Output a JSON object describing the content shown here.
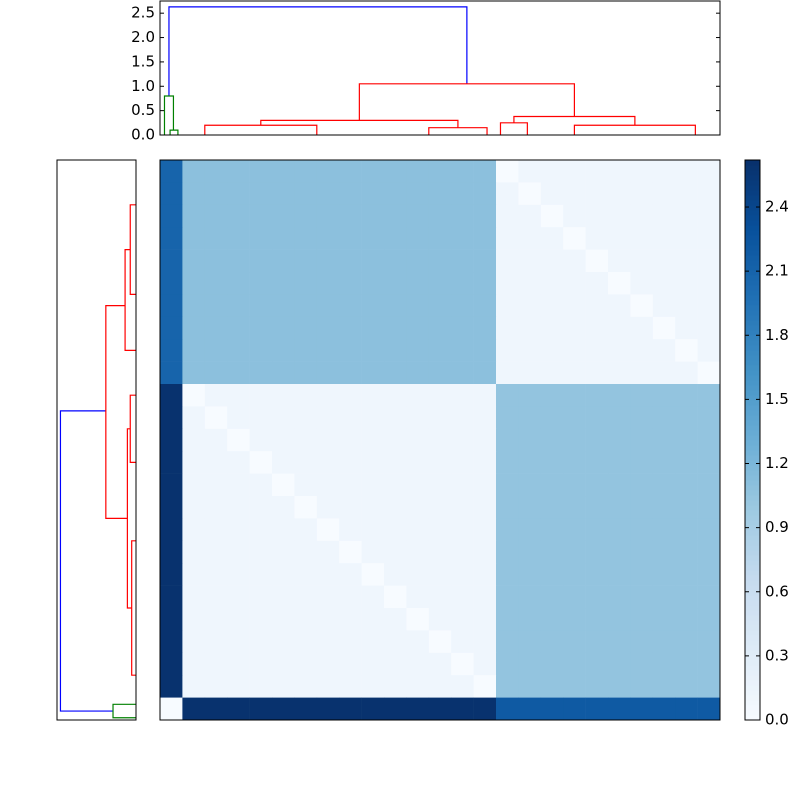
{
  "chart_data": [
    {
      "type": "dendrogram",
      "orientation": "top",
      "xlim": [
        0,
        25
      ],
      "ylim": [
        0,
        2.75
      ],
      "yticks": [
        {
          "value": 0,
          "label": "0.0"
        },
        0.5,
        {
          "value": 1,
          "label": "1.0"
        },
        1.5,
        {
          "value": 2,
          "label": "2.0"
        },
        2.5
      ],
      "links": [
        {
          "x": [
            0.4,
            13.7
          ],
          "height": 2.63,
          "base": [
            0.8,
            1.05
          ],
          "color": "#0000ff"
        },
        {
          "x": [
            0.2,
            0.6
          ],
          "height": 0.8,
          "base": [
            0,
            0.1
          ],
          "color": "#008000"
        },
        {
          "x": [
            0.45,
            0.8
          ],
          "height": 0.1,
          "base": [
            0,
            0
          ],
          "color": "#008000"
        },
        {
          "x": [
            8.9,
            18.5
          ],
          "height": 1.05,
          "base": [
            0.3,
            0.38
          ],
          "color": "#ff0000"
        },
        {
          "x": [
            4.5,
            13.3
          ],
          "height": 0.3,
          "base": [
            0.2,
            0.15
          ],
          "color": "#ff0000"
        },
        {
          "x": [
            2,
            7
          ],
          "height": 0.2,
          "base": [
            0,
            0
          ],
          "color": "#ff0000"
        },
        {
          "x": [
            12,
            14.6
          ],
          "height": 0.15,
          "base": [
            0,
            0
          ],
          "color": "#ff0000"
        },
        {
          "x": [
            15.8,
            21.2
          ],
          "height": 0.38,
          "base": [
            0.25,
            0.2
          ],
          "color": "#ff0000"
        },
        {
          "x": [
            15.2,
            16.4
          ],
          "height": 0.25,
          "base": [
            0,
            0
          ],
          "color": "#ff0000"
        },
        {
          "x": [
            18.5,
            23.9
          ],
          "height": 0.2,
          "base": [
            0,
            0
          ],
          "color": "#ff0000"
        }
      ]
    },
    {
      "type": "dendrogram",
      "orientation": "left",
      "ylim": [
        0,
        25
      ],
      "xlim": [
        0,
        2.75
      ],
      "links": [
        {
          "x": [
            11.2,
            24.6
          ],
          "height": 2.63,
          "base": [
            1.05,
            0.8
          ],
          "color": "#0000ff"
        },
        {
          "x": [
            24.3,
            24.9
          ],
          "height": 0.8,
          "base": [
            0,
            0
          ],
          "color": "#008000"
        },
        {
          "x": [
            6.5,
            16
          ],
          "height": 1.05,
          "base": [
            0.38,
            0.3
          ],
          "color": "#ff0000"
        },
        {
          "x": [
            4,
            8.5
          ],
          "height": 0.38,
          "base": [
            0.2,
            0
          ],
          "color": "#ff0000"
        },
        {
          "x": [
            2,
            6
          ],
          "height": 0.2,
          "base": [
            0,
            0
          ],
          "color": "#ff0000"
        },
        {
          "x": [
            12,
            20
          ],
          "height": 0.3,
          "base": [
            0.2,
            0.15
          ],
          "color": "#ff0000"
        },
        {
          "x": [
            10.5,
            13.5
          ],
          "height": 0.2,
          "base": [
            0,
            0
          ],
          "color": "#ff0000"
        },
        {
          "x": [
            17,
            23
          ],
          "height": 0.15,
          "base": [
            0,
            0
          ],
          "color": "#ff0000"
        }
      ]
    },
    {
      "type": "heatmap",
      "clim": [
        0,
        2.62
      ],
      "colormap": [
        "#f7fbff",
        "#deebf7",
        "#c6dbef",
        "#9ecae1",
        "#6baed6",
        "#4292c6",
        "#2171b5",
        "#08519c",
        "#08306b"
      ],
      "colorbar_ticks": [
        {
          "value": 0,
          "label": "0.0"
        },
        0.3,
        0.6,
        0.9,
        1.2,
        1.5,
        1.8,
        2.1,
        2.4
      ],
      "values": [
        [
          2.1,
          1.1,
          1.1,
          1.1,
          1.1,
          1.1,
          1.1,
          1.1,
          1.1,
          1.1,
          1.1,
          1.1,
          1.1,
          1.1,
          1.1,
          0,
          0.1,
          0.1,
          0.1,
          0.1,
          0.1,
          0.1,
          0.1,
          0.1,
          0.1
        ],
        [
          2.1,
          1.1,
          1.1,
          1.1,
          1.1,
          1.1,
          1.1,
          1.1,
          1.1,
          1.1,
          1.1,
          1.1,
          1.1,
          1.1,
          1.1,
          0.1,
          0,
          0.1,
          0.1,
          0.1,
          0.1,
          0.1,
          0.1,
          0.1,
          0.1
        ],
        [
          2.1,
          1.1,
          1.1,
          1.1,
          1.1,
          1.1,
          1.1,
          1.1,
          1.1,
          1.1,
          1.1,
          1.1,
          1.1,
          1.1,
          1.1,
          0.1,
          0.1,
          0,
          0.1,
          0.1,
          0.1,
          0.1,
          0.1,
          0.1,
          0.1
        ],
        [
          2.1,
          1.1,
          1.1,
          1.1,
          1.1,
          1.1,
          1.1,
          1.1,
          1.1,
          1.1,
          1.1,
          1.1,
          1.1,
          1.1,
          1.1,
          0.1,
          0.1,
          0.1,
          0,
          0.1,
          0.1,
          0.1,
          0.1,
          0.1,
          0.1
        ],
        [
          2.1,
          1.1,
          1.1,
          1.1,
          1.1,
          1.1,
          1.1,
          1.1,
          1.1,
          1.1,
          1.1,
          1.1,
          1.1,
          1.1,
          1.1,
          0.1,
          0.1,
          0.1,
          0.1,
          0,
          0.1,
          0.1,
          0.1,
          0.1,
          0.1
        ],
        [
          2.1,
          1.1,
          1.1,
          1.1,
          1.1,
          1.1,
          1.1,
          1.1,
          1.1,
          1.1,
          1.1,
          1.1,
          1.1,
          1.1,
          1.1,
          0.1,
          0.1,
          0.1,
          0.1,
          0.1,
          0,
          0.1,
          0.1,
          0.1,
          0.1
        ],
        [
          2.1,
          1.1,
          1.1,
          1.1,
          1.1,
          1.1,
          1.1,
          1.1,
          1.1,
          1.1,
          1.1,
          1.1,
          1.1,
          1.1,
          1.1,
          0.1,
          0.1,
          0.1,
          0.1,
          0.1,
          0.1,
          0,
          0.1,
          0.1,
          0.1
        ],
        [
          2.1,
          1.1,
          1.1,
          1.1,
          1.1,
          1.1,
          1.1,
          1.1,
          1.1,
          1.1,
          1.1,
          1.1,
          1.1,
          1.1,
          1.1,
          0.1,
          0.1,
          0.1,
          0.1,
          0.1,
          0.1,
          0.1,
          0,
          0.1,
          0.1
        ],
        [
          2.1,
          1.1,
          1.1,
          1.1,
          1.1,
          1.1,
          1.1,
          1.1,
          1.1,
          1.1,
          1.1,
          1.1,
          1.1,
          1.1,
          1.1,
          0.1,
          0.1,
          0.1,
          0.1,
          0.1,
          0.1,
          0.1,
          0.1,
          0,
          0.1
        ],
        [
          2.1,
          1.1,
          1.1,
          1.1,
          1.1,
          1.1,
          1.1,
          1.1,
          1.1,
          1.1,
          1.1,
          1.1,
          1.1,
          1.1,
          1.1,
          0.1,
          0.1,
          0.1,
          0.1,
          0.1,
          0.1,
          0.1,
          0.1,
          0.1,
          0
        ],
        [
          2.6,
          0,
          0.1,
          0.1,
          0.1,
          0.1,
          0.1,
          0.1,
          0.1,
          0.1,
          0.1,
          0.1,
          0.1,
          0.1,
          0.1,
          1.05,
          1.05,
          1.05,
          1.05,
          1.05,
          1.05,
          1.05,
          1.05,
          1.05,
          1.05
        ],
        [
          2.6,
          0.1,
          0,
          0.1,
          0.1,
          0.1,
          0.1,
          0.1,
          0.1,
          0.1,
          0.1,
          0.1,
          0.1,
          0.1,
          0.1,
          1.05,
          1.05,
          1.05,
          1.05,
          1.05,
          1.05,
          1.05,
          1.05,
          1.05,
          1.05
        ],
        [
          2.6,
          0.1,
          0.1,
          0,
          0.1,
          0.1,
          0.1,
          0.1,
          0.1,
          0.1,
          0.1,
          0.1,
          0.1,
          0.1,
          0.1,
          1.05,
          1.05,
          1.05,
          1.05,
          1.05,
          1.05,
          1.05,
          1.05,
          1.05,
          1.05
        ],
        [
          2.6,
          0.1,
          0.1,
          0.1,
          0,
          0.1,
          0.1,
          0.1,
          0.1,
          0.1,
          0.1,
          0.1,
          0.1,
          0.1,
          0.1,
          1.05,
          1.05,
          1.05,
          1.05,
          1.05,
          1.05,
          1.05,
          1.05,
          1.05,
          1.05
        ],
        [
          2.6,
          0.1,
          0.1,
          0.1,
          0.1,
          0,
          0.1,
          0.1,
          0.1,
          0.1,
          0.1,
          0.1,
          0.1,
          0.1,
          0.1,
          1.05,
          1.05,
          1.05,
          1.05,
          1.05,
          1.05,
          1.05,
          1.05,
          1.05,
          1.05
        ],
        [
          2.6,
          0.1,
          0.1,
          0.1,
          0.1,
          0.1,
          0,
          0.1,
          0.1,
          0.1,
          0.1,
          0.1,
          0.1,
          0.1,
          0.1,
          1.05,
          1.05,
          1.05,
          1.05,
          1.05,
          1.05,
          1.05,
          1.05,
          1.05,
          1.05
        ],
        [
          2.6,
          0.1,
          0.1,
          0.1,
          0.1,
          0.1,
          0.1,
          0,
          0.1,
          0.1,
          0.1,
          0.1,
          0.1,
          0.1,
          0.1,
          1.05,
          1.05,
          1.05,
          1.05,
          1.05,
          1.05,
          1.05,
          1.05,
          1.05,
          1.05
        ],
        [
          2.6,
          0.1,
          0.1,
          0.1,
          0.1,
          0.1,
          0.1,
          0.1,
          0,
          0.1,
          0.1,
          0.1,
          0.1,
          0.1,
          0.1,
          1.05,
          1.05,
          1.05,
          1.05,
          1.05,
          1.05,
          1.05,
          1.05,
          1.05,
          1.05
        ],
        [
          2.6,
          0.1,
          0.1,
          0.1,
          0.1,
          0.1,
          0.1,
          0.1,
          0.1,
          0,
          0.1,
          0.1,
          0.1,
          0.1,
          0.1,
          1.05,
          1.05,
          1.05,
          1.05,
          1.05,
          1.05,
          1.05,
          1.05,
          1.05,
          1.05
        ],
        [
          2.6,
          0.1,
          0.1,
          0.1,
          0.1,
          0.1,
          0.1,
          0.1,
          0.1,
          0.1,
          0,
          0.1,
          0.1,
          0.1,
          0.1,
          1.05,
          1.05,
          1.05,
          1.05,
          1.05,
          1.05,
          1.05,
          1.05,
          1.05,
          1.05
        ],
        [
          2.6,
          0.1,
          0.1,
          0.1,
          0.1,
          0.1,
          0.1,
          0.1,
          0.1,
          0.1,
          0.1,
          0,
          0.1,
          0.1,
          0.1,
          1.05,
          1.05,
          1.05,
          1.05,
          1.05,
          1.05,
          1.05,
          1.05,
          1.05,
          1.05
        ],
        [
          2.6,
          0.1,
          0.1,
          0.1,
          0.1,
          0.1,
          0.1,
          0.1,
          0.1,
          0.1,
          0.1,
          0.1,
          0,
          0.1,
          0.1,
          1.05,
          1.05,
          1.05,
          1.05,
          1.05,
          1.05,
          1.05,
          1.05,
          1.05,
          1.05
        ],
        [
          2.6,
          0.1,
          0.1,
          0.1,
          0.1,
          0.1,
          0.1,
          0.1,
          0.1,
          0.1,
          0.1,
          0.1,
          0.1,
          0,
          0.1,
          1.05,
          1.05,
          1.05,
          1.05,
          1.05,
          1.05,
          1.05,
          1.05,
          1.05,
          1.05
        ],
        [
          2.6,
          0.1,
          0.1,
          0.1,
          0.1,
          0.1,
          0.1,
          0.1,
          0.1,
          0.1,
          0.1,
          0.1,
          0.1,
          0.1,
          0,
          1.05,
          1.05,
          1.05,
          1.05,
          1.05,
          1.05,
          1.05,
          1.05,
          1.05,
          1.05
        ],
        [
          0,
          2.6,
          2.6,
          2.6,
          2.6,
          2.6,
          2.6,
          2.6,
          2.6,
          2.6,
          2.6,
          2.6,
          2.6,
          2.6,
          2.6,
          2.2,
          2.2,
          2.2,
          2.2,
          2.2,
          2.2,
          2.2,
          2.2,
          2.2,
          2.2
        ]
      ]
    }
  ]
}
